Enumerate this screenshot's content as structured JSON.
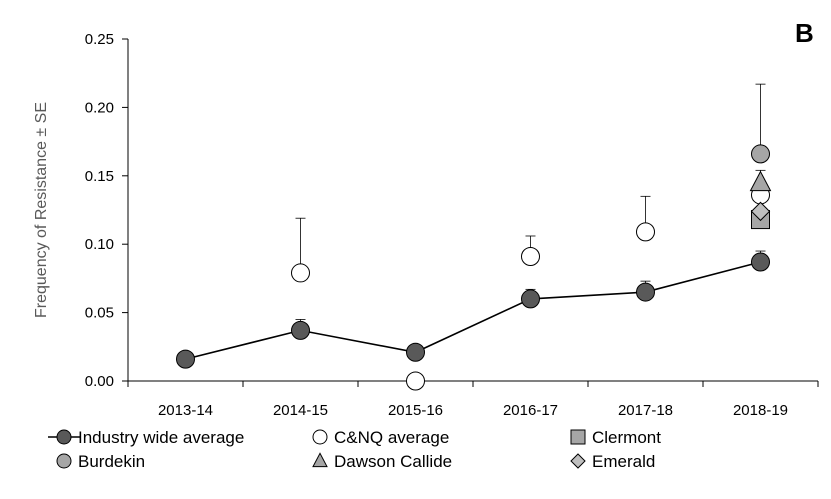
{
  "panel_label": "B",
  "chart_data": {
    "type": "scatter",
    "xlabel": "",
    "ylabel": "Frequency of Resistance ± SE",
    "ylim": [
      0,
      0.25
    ],
    "y_ticks": [
      "0.00",
      "0.05",
      "0.10",
      "0.15",
      "0.20",
      "0.25"
    ],
    "categories": [
      "2013-14",
      "2014-15",
      "2015-16",
      "2016-17",
      "2017-18",
      "2018-19"
    ],
    "legend_position": "bottom",
    "grid": false,
    "series": [
      {
        "name": "Industry wide average",
        "marker": "circle",
        "fill": "#595959",
        "line": true,
        "values": [
          0.016,
          0.037,
          0.021,
          0.06,
          0.065,
          0.087
        ],
        "error": [
          null,
          0.008,
          null,
          0.007,
          0.008,
          0.008
        ]
      },
      {
        "name": "C&NQ average",
        "marker": "circle",
        "fill": "#ffffff",
        "line": false,
        "values": [
          null,
          0.079,
          0.0,
          0.091,
          0.109,
          0.136
        ],
        "error": [
          null,
          0.04,
          null,
          0.015,
          0.026,
          0.018
        ]
      },
      {
        "name": "Clermont",
        "marker": "square",
        "fill": "#a6a6a6",
        "line": false,
        "values": [
          null,
          null,
          null,
          null,
          null,
          0.118
        ],
        "error": [
          null,
          null,
          null,
          null,
          null,
          null
        ]
      },
      {
        "name": "Burdekin",
        "marker": "circle",
        "fill": "#a6a6a6",
        "line": false,
        "values": [
          null,
          null,
          null,
          null,
          null,
          0.166
        ],
        "error": [
          null,
          null,
          null,
          null,
          null,
          0.051
        ]
      },
      {
        "name": "Dawson Callide",
        "marker": "triangle",
        "fill": "#a6a6a6",
        "line": false,
        "values": [
          null,
          null,
          null,
          null,
          null,
          0.145
        ],
        "error": [
          null,
          null,
          null,
          null,
          null,
          null
        ]
      },
      {
        "name": "Emerald",
        "marker": "diamond",
        "fill": "#bfbfbf",
        "line": false,
        "values": [
          null,
          null,
          null,
          null,
          null,
          0.124
        ],
        "error": [
          null,
          null,
          null,
          null,
          null,
          null
        ]
      }
    ]
  }
}
